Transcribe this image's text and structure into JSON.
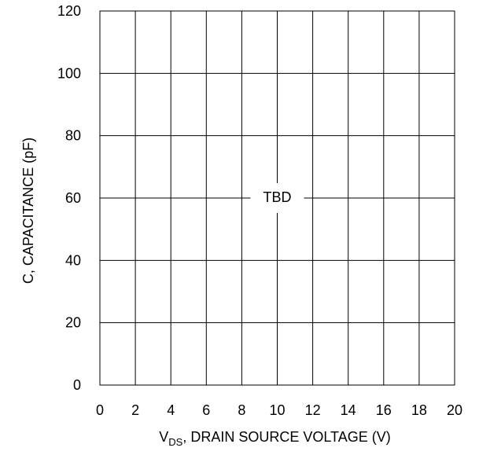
{
  "chart_data": {
    "type": "line",
    "title": "",
    "xlabel": {
      "prefix": "V",
      "subscript": "DS",
      "suffix": ", DRAIN SOURCE VOLTAGE (V)"
    },
    "ylabel": "C, CAPACITANCE (pF)",
    "xlim": [
      0,
      20
    ],
    "ylim": [
      0,
      120
    ],
    "x_ticks": [
      0,
      2,
      4,
      6,
      8,
      10,
      12,
      14,
      16,
      18,
      20
    ],
    "y_ticks": [
      0,
      20,
      40,
      60,
      80,
      100,
      120
    ],
    "grid": true,
    "series": [],
    "annotation": {
      "text": "TBD",
      "x": 10,
      "y": 60
    }
  }
}
